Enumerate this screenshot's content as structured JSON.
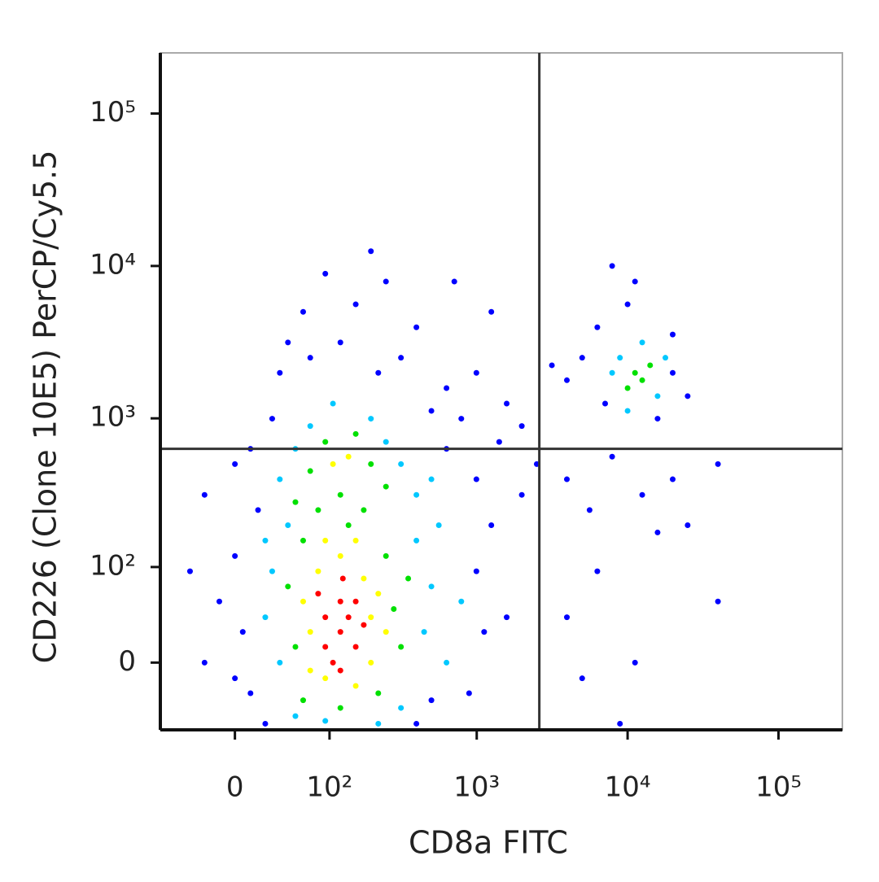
{
  "chart_data": {
    "type": "scatter",
    "xlabel": "CD8a FITC",
    "ylabel": "CD226 (Clone 10E5) PerCP/Cy5.5",
    "xscale": "biexponential",
    "yscale": "biexponential",
    "xlim": [
      -70,
      265000
    ],
    "ylim": [
      -60,
      250000
    ],
    "xticks": [
      0,
      {
        "value": 100,
        "label": "10²"
      },
      {
        "value": 1000,
        "label": "10³"
      },
      {
        "value": 10000,
        "label": "10⁴"
      },
      {
        "value": 100000,
        "label": "10⁵"
      }
    ],
    "yticks": [
      0,
      {
        "value": 100,
        "label": "10²"
      },
      {
        "value": 1000,
        "label": "10³"
      },
      {
        "value": 10000,
        "label": "10⁴"
      },
      {
        "value": 100000,
        "label": "10⁵"
      }
    ],
    "quadrant": {
      "x": 2600,
      "y": 630
    },
    "series": [
      {
        "color": "#0000ff",
        "x": [
          6,
          0,
          12,
          -12,
          18,
          12,
          30,
          37,
          71,
          62,
          120,
          154,
          220,
          313,
          397,
          93,
          248,
          630,
          790,
          995,
          1580,
          1990,
          1250,
          710,
          995,
          1250,
          1580,
          1990,
          890,
          995,
          397,
          24,
          -24,
          -37,
          -24,
          0,
          630,
          1410,
          2500,
          196,
          45,
          500,
          1120,
          500,
          0,
          5000,
          3960,
          6300,
          7900,
          10000,
          19900,
          19900,
          25000,
          7100,
          15800,
          3150,
          11200,
          3960,
          5600,
          7900,
          12500,
          19900,
          25000,
          39700,
          39700,
          11200,
          6300,
          3960,
          8900,
          5000,
          15800
        ],
        "values": [
          24,
          120,
          -24,
          53,
          248,
          630,
          995,
          1990,
          2500,
          5000,
          3150,
          5600,
          1990,
          2500,
          3960,
          8900,
          7900,
          1580,
          995,
          1990,
          1250,
          890,
          5000,
          7900,
          397,
          196,
          37,
          313,
          -24,
          93,
          -53,
          -53,
          0,
          93,
          313,
          500,
          630,
          700,
          500,
          12500,
          3150,
          1120,
          24,
          -30,
          -12,
          2500,
          1780,
          3960,
          10000,
          5600,
          1990,
          3550,
          1400,
          1250,
          995,
          2230,
          7900,
          397,
          248,
          560,
          313,
          397,
          196,
          500,
          53,
          0,
          93,
          37,
          -53,
          -12,
          175
        ]
      },
      {
        "color": "#00c8ff",
        "x": [
          37,
          30,
          447,
          397,
          37,
          313,
          53,
          313,
          500,
          45,
          196,
          71,
          397,
          630,
          24,
          560,
          93,
          220,
          248,
          53,
          106,
          790,
          500,
          24,
          8900,
          15800,
          17800,
          7900,
          12500,
          10000
        ],
        "values": [
          0,
          93,
          24,
          154,
          397,
          500,
          -45,
          -37,
          71,
          196,
          995,
          890,
          313,
          0,
          37,
          196,
          -50,
          -53,
          700,
          630,
          1250,
          53,
          397,
          154,
          2500,
          1400,
          2500,
          1990,
          3150,
          1120
        ]
      },
      {
        "color": "#00e000",
        "x": [
          53,
          280,
          62,
          248,
          82,
          175,
          120,
          71,
          196,
          93,
          154,
          313,
          45,
          62,
          220,
          350,
          53,
          248,
          120,
          137,
          11200,
          12500,
          14100,
          10000
        ],
        "values": [
          12,
          45,
          154,
          120,
          248,
          248,
          313,
          450,
          500,
          700,
          790,
          12,
          71,
          -30,
          -24,
          82,
          280,
          355,
          -37,
          196,
          1990,
          1780,
          2230,
          1580
        ]
      },
      {
        "color": "#ffff00",
        "x": [
          71,
          196,
          82,
          175,
          93,
          196,
          62,
          220,
          120,
          71,
          154,
          106,
          137,
          248,
          93,
          154
        ],
        "values": [
          24,
          37,
          93,
          82,
          -12,
          0,
          53,
          62,
          120,
          -6,
          -18,
          500,
          560,
          24,
          154,
          154
        ]
      },
      {
        "color": "#ff0000",
        "x": [
          120,
          93,
          154,
          120,
          106,
          137,
          93,
          154,
          120,
          175,
          82,
          125
        ],
        "values": [
          24,
          37,
          12,
          53,
          0,
          37,
          12,
          53,
          -6,
          30,
          62,
          82
        ]
      }
    ]
  }
}
